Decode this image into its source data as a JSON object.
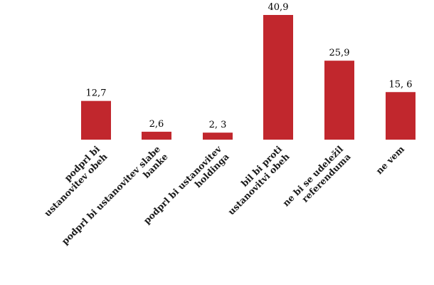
{
  "chart_data": {
    "type": "bar",
    "categories": [
      "podprl bi\nustanovitev obeh",
      "podprl bi ustanovitev slabe\nbanke",
      "podprl bi ustanovitev\nholdinga",
      "bil bi proti\nustanovitvi obeh",
      "ne bi se udeležil\nreferenduma",
      "ne vem"
    ],
    "values": [
      12.7,
      2.6,
      2.3,
      40.9,
      25.9,
      15.6
    ],
    "value_labels": [
      "12,7",
      "2,6",
      "2, 3",
      "40,9",
      "25,9",
      "15, 6"
    ],
    "title": "",
    "xlabel": "",
    "ylabel": "",
    "ylim": [
      0,
      40.9
    ],
    "grid": false,
    "bar_color": "#c1272d"
  }
}
